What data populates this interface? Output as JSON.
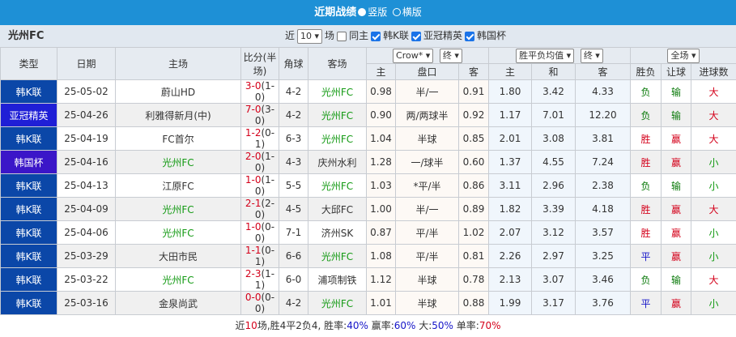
{
  "header": {
    "title": "近期战绩",
    "option_vertical": "竖版",
    "option_horizontal": "横版"
  },
  "filter": {
    "team": "光州FC",
    "near_label": "近",
    "count": "10",
    "unit_label": "场",
    "same_home": "同主",
    "leagues": [
      "韩K联",
      "亚冠精英",
      "韩国杯"
    ]
  },
  "columns": {
    "type": "类型",
    "date": "日期",
    "home": "主场",
    "score": "比分(半场)",
    "corner": "角球",
    "away": "客场",
    "company": "Crow*",
    "odds_time1": "终",
    "euro": "胜平负均值",
    "odds_time2": "终",
    "scope": "全场",
    "sub": [
      "主",
      "盘口",
      "客",
      "主",
      "和",
      "客",
      "胜负",
      "让球",
      "进球数"
    ]
  },
  "rows": [
    {
      "type": "韩K联",
      "date": "25-05-02",
      "home": "蔚山HD",
      "score": "3-0",
      "half": "(1-0)",
      "corner": "4-2",
      "away": "光州FC",
      "hw": "0.98",
      "pk": "半/一",
      "aw": "0.91",
      "e1": "1.80",
      "e2": "3.42",
      "e3": "4.33",
      "res": "负",
      "ah": "输",
      "ou": "大"
    },
    {
      "type": "亚冠精英",
      "date": "25-04-26",
      "home": "利雅得新月(中)",
      "score": "7-0",
      "half": "(3-0)",
      "corner": "4-2",
      "away": "光州FC",
      "hw": "0.90",
      "pk": "两/两球半",
      "aw": "0.92",
      "e1": "1.17",
      "e2": "7.01",
      "e3": "12.20",
      "res": "负",
      "ah": "输",
      "ou": "大"
    },
    {
      "type": "韩K联",
      "date": "25-04-19",
      "home": "FC首尔",
      "score": "1-2",
      "half": "(0-1)",
      "corner": "6-3",
      "away": "光州FC",
      "hw": "1.04",
      "pk": "半球",
      "aw": "0.85",
      "e1": "2.01",
      "e2": "3.08",
      "e3": "3.81",
      "res": "胜",
      "ah": "赢",
      "ou": "大"
    },
    {
      "type": "韩国杯",
      "date": "25-04-16",
      "home": "光州FC",
      "score": "2-0",
      "half": "(1-0)",
      "corner": "4-3",
      "away": "庆州水利",
      "hw": "1.28",
      "pk": "一/球半",
      "aw": "0.60",
      "e1": "1.37",
      "e2": "4.55",
      "e3": "7.24",
      "res": "胜",
      "ah": "赢",
      "ou": "小"
    },
    {
      "type": "韩K联",
      "date": "25-04-13",
      "home": "江原FC",
      "score": "1-0",
      "half": "(1-0)",
      "corner": "5-5",
      "away": "光州FC",
      "hw": "1.03",
      "pk": "*平/半",
      "aw": "0.86",
      "e1": "3.11",
      "e2": "2.96",
      "e3": "2.38",
      "res": "负",
      "ah": "输",
      "ou": "小"
    },
    {
      "type": "韩K联",
      "date": "25-04-09",
      "home": "光州FC",
      "score": "2-1",
      "half": "(2-0)",
      "corner": "4-5",
      "away": "大邱FC",
      "hw": "1.00",
      "pk": "半/一",
      "aw": "0.89",
      "e1": "1.82",
      "e2": "3.39",
      "e3": "4.18",
      "res": "胜",
      "ah": "赢",
      "ou": "大"
    },
    {
      "type": "韩K联",
      "date": "25-04-06",
      "home": "光州FC",
      "score": "1-0",
      "half": "(0-0)",
      "corner": "7-1",
      "away": "济州SK",
      "hw": "0.87",
      "pk": "平/半",
      "aw": "1.02",
      "e1": "2.07",
      "e2": "3.12",
      "e3": "3.57",
      "res": "胜",
      "ah": "赢",
      "ou": "小"
    },
    {
      "type": "韩K联",
      "date": "25-03-29",
      "home": "大田市民",
      "score": "1-1",
      "half": "(0-1)",
      "corner": "6-6",
      "away": "光州FC",
      "hw": "1.08",
      "pk": "平/半",
      "aw": "0.81",
      "e1": "2.26",
      "e2": "2.97",
      "e3": "3.25",
      "res": "平",
      "ah": "赢",
      "ou": "小"
    },
    {
      "type": "韩K联",
      "date": "25-03-22",
      "home": "光州FC",
      "score": "2-3",
      "half": "(1-1)",
      "corner": "6-0",
      "away": "浦项制铁",
      "hw": "1.12",
      "pk": "半球",
      "aw": "0.78",
      "e1": "2.13",
      "e2": "3.07",
      "e3": "3.46",
      "res": "负",
      "ah": "输",
      "ou": "大"
    },
    {
      "type": "韩K联",
      "date": "25-03-16",
      "home": "金泉尚武",
      "score": "0-0",
      "half": "(0-0)",
      "corner": "4-2",
      "away": "光州FC",
      "hw": "1.01",
      "pk": "半球",
      "aw": "0.88",
      "e1": "1.99",
      "e2": "3.17",
      "e3": "3.76",
      "res": "平",
      "ah": "赢",
      "ou": "小"
    }
  ],
  "summary": {
    "p1": "近",
    "n": "10",
    "p2": "场,胜4平2负4, 胜率:",
    "win": "40%",
    "p3": " 赢率:",
    "ahwin": "60%",
    "p4": " 大:",
    "big": "50%",
    "p5": " 单率:",
    "odd": "70%"
  },
  "colors": {
    "header_blue": "#1e90d6",
    "league_blue": "#0b47a8",
    "red": "#d4001a",
    "green": "#139a13"
  }
}
